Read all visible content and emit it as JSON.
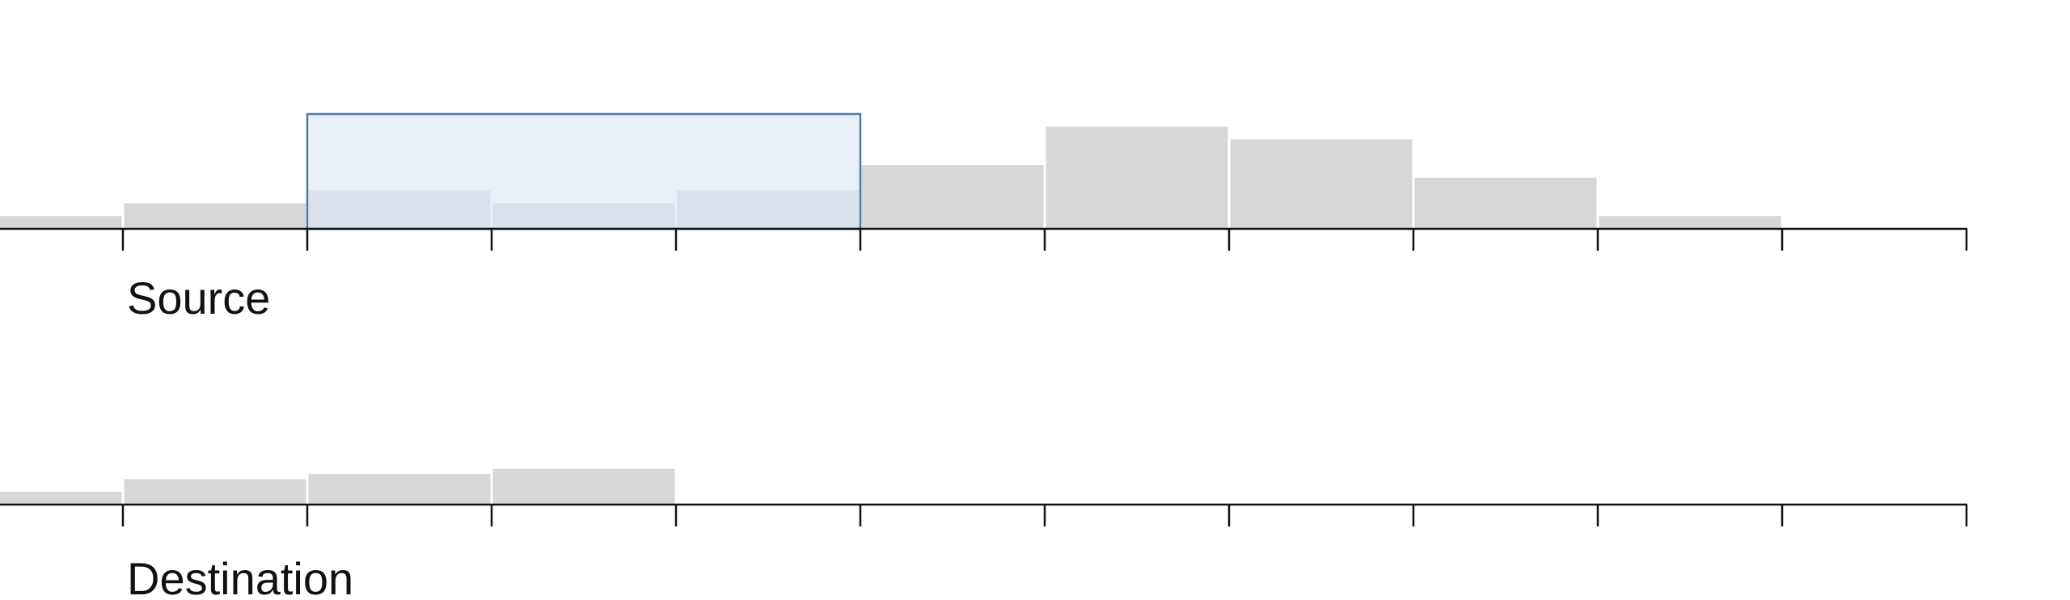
{
  "chart_data": [
    {
      "type": "bar",
      "panel": "source",
      "title": "Source",
      "xlabel": "",
      "ylabel": "",
      "bins": 11,
      "values": [
        1,
        2,
        3,
        2,
        3,
        5,
        8,
        7,
        4,
        1,
        0
      ],
      "ylim": [
        0,
        10
      ],
      "brush": {
        "from_bin": 2,
        "to_bin": 5,
        "color": "#4a7cab",
        "fill": "#dfe9f4"
      },
      "bar_color": "#d7d7d7",
      "bar_color_selected": "#c4ccd6",
      "tick_count": 11
    },
    {
      "type": "bar",
      "panel": "destination",
      "title": "Destination",
      "xlabel": "",
      "ylabel": "",
      "bins": 11,
      "values": [
        1,
        2,
        2.4,
        2.8,
        0,
        0,
        0,
        0,
        0,
        0,
        0
      ],
      "ylim": [
        0,
        10
      ],
      "bar_color": "#d7d7d7",
      "tick_count": 11
    }
  ]
}
